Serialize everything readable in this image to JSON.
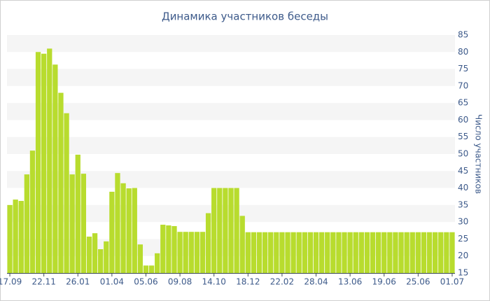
{
  "chart_data": {
    "type": "bar",
    "title": "Динамика участников беседы",
    "y_label": "Число участников",
    "categories": [
      "17.09",
      null,
      null,
      null,
      null,
      null,
      "22.11",
      null,
      null,
      null,
      null,
      null,
      "26.01",
      null,
      null,
      null,
      null,
      null,
      "01.04",
      null,
      null,
      null,
      null,
      null,
      "05.06",
      null,
      null,
      null,
      null,
      null,
      "09.08",
      null,
      null,
      null,
      null,
      null,
      "14.10",
      null,
      null,
      null,
      null,
      null,
      "18.12",
      null,
      null,
      null,
      null,
      null,
      "22.02",
      null,
      null,
      null,
      null,
      null,
      "28.04",
      null,
      null,
      null,
      null,
      null,
      "13.06",
      null,
      null,
      null,
      null,
      null,
      "19.06",
      null,
      null,
      null,
      null,
      null,
      "25.06",
      null,
      null,
      null,
      null,
      null,
      "01.07"
    ],
    "values": [
      35,
      36.6,
      36.2,
      44,
      51,
      80,
      79.5,
      81,
      76.3,
      68,
      62,
      44,
      49.8,
      44.2,
      25.7,
      26.7,
      22,
      24.3,
      38.9,
      44.4,
      41.4,
      39.9,
      40,
      23.4,
      17.2,
      17.2,
      20.8,
      29.2,
      29,
      28.8,
      27.1,
      27.1,
      27.1,
      27.1,
      27.1,
      32.6,
      40,
      40,
      40,
      40,
      40,
      31.8,
      27,
      27,
      27,
      27,
      27,
      27,
      27,
      27,
      27,
      27,
      27,
      27,
      27,
      27,
      27,
      27,
      27,
      27,
      27,
      27,
      27,
      27,
      27,
      27,
      27,
      27,
      27,
      27,
      27,
      27,
      27,
      27,
      27,
      27,
      27,
      27,
      27
    ],
    "color": "#b8dc2e",
    "ylim": [
      15,
      85
    ],
    "yticks": [
      15,
      20,
      25,
      30,
      35,
      40,
      45,
      50,
      55,
      60,
      65,
      70,
      75,
      80,
      85
    ],
    "y_axis_side": "right",
    "grid": "bands"
  }
}
